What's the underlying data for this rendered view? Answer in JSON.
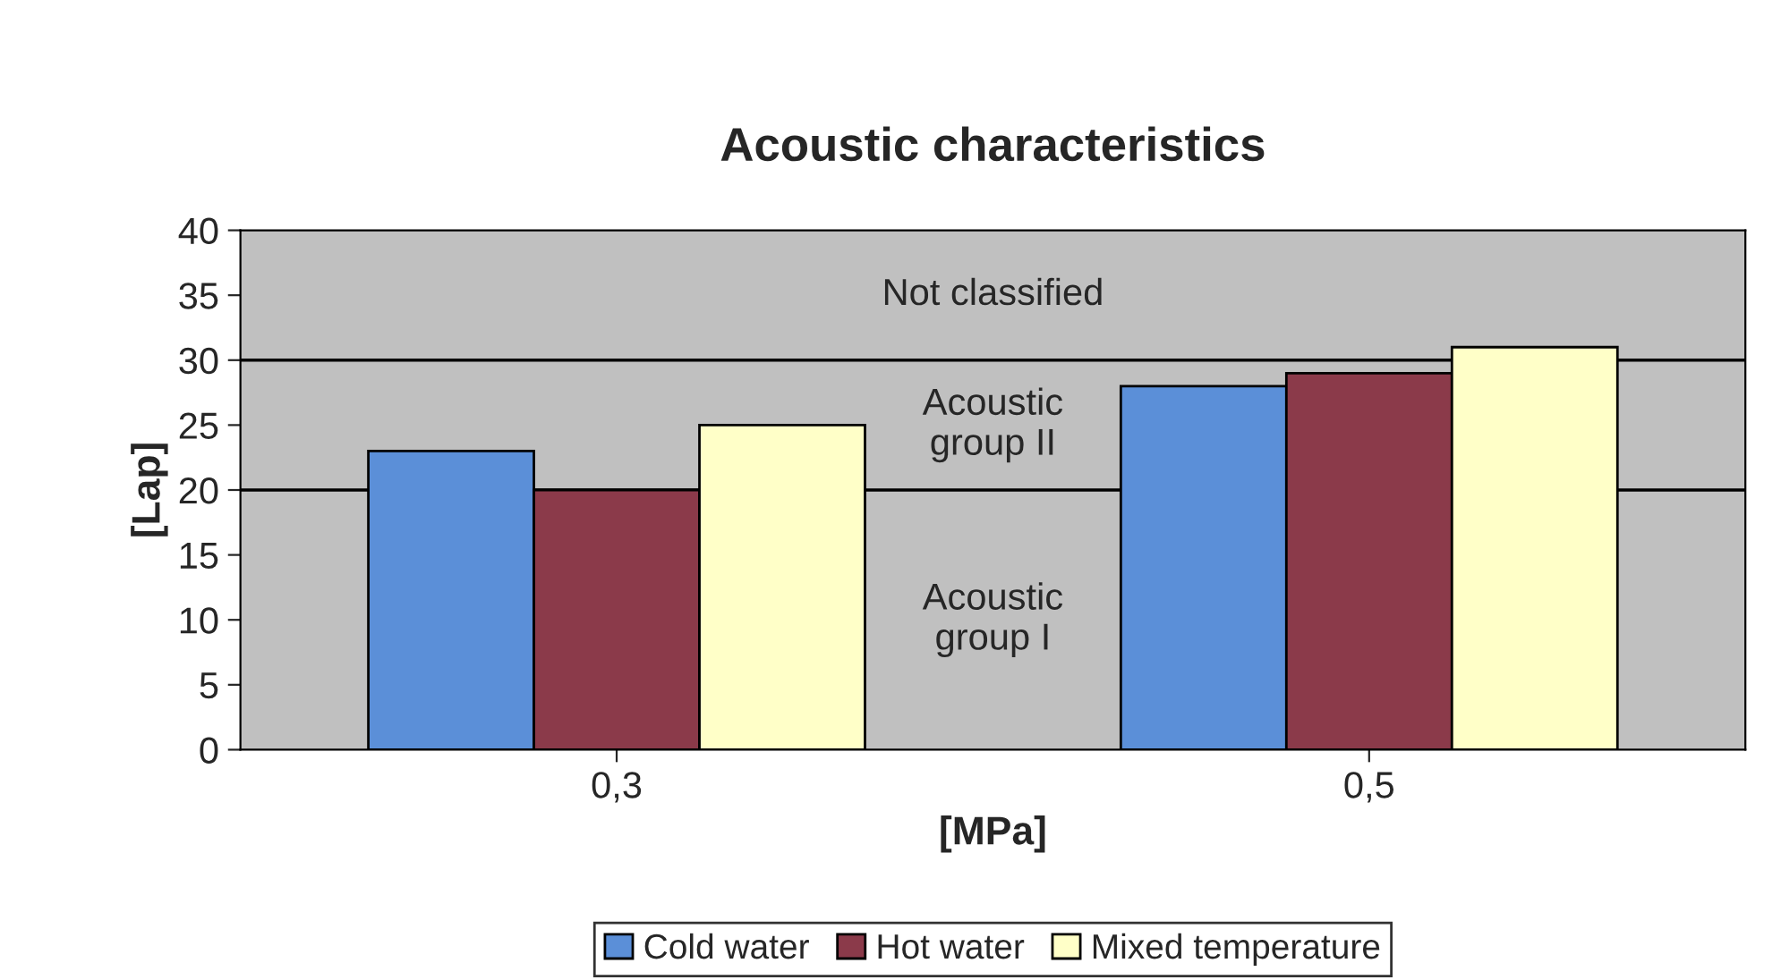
{
  "chart_data": {
    "type": "bar",
    "title": "Acoustic characteristics",
    "xlabel": "[MPa]",
    "ylabel": "[Lap]",
    "categories": [
      "0,3",
      "0,5"
    ],
    "series": [
      {
        "name": "Cold water",
        "color": "#5b8fd8",
        "values": [
          23,
          28
        ]
      },
      {
        "name": "Hot water",
        "color": "#8b3a4a",
        "values": [
          20,
          29
        ]
      },
      {
        "name": "Mixed temperature",
        "color": "#ffffc8",
        "values": [
          25,
          31
        ]
      }
    ],
    "ylim": [
      0,
      40
    ],
    "yticks": [
      0,
      5,
      10,
      15,
      20,
      25,
      30,
      35,
      40
    ],
    "bands": [
      {
        "axis": "y",
        "from": 0,
        "to": 20,
        "label": "Acoustic group I",
        "color": "#c0c0c0"
      },
      {
        "axis": "y",
        "from": 20,
        "to": 30,
        "label": "Acoustic group II",
        "color": "#c0c0c0"
      },
      {
        "axis": "y",
        "from": 30,
        "to": 40,
        "label": "Not classified",
        "color": "#c0c0c0"
      }
    ],
    "ref_lines": [
      {
        "axis": "y",
        "value": 20,
        "color": "#000000"
      },
      {
        "axis": "y",
        "value": 30,
        "color": "#000000"
      }
    ],
    "grid": false,
    "legend": "bottom"
  }
}
